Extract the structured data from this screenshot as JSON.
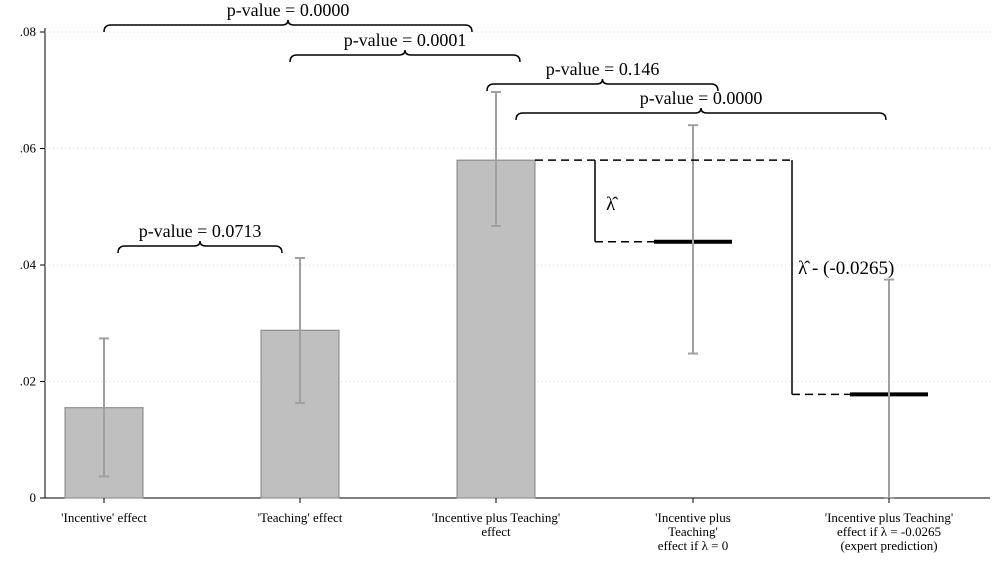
{
  "chart_data": {
    "type": "bar",
    "categories": [
      "'Incentive' effect",
      "'Teaching' effect",
      "'Incentive plus Teaching'\neffect",
      "'Incentive plus\nTeaching'\neffect if  λ = 0",
      "'Incentive plus Teaching'\neffect if  λ = -0.0265\n(expert prediction)"
    ],
    "values": [
      0.0155,
      0.0288,
      0.058,
      0.044,
      0.0178
    ],
    "ci_low": [
      0.0037,
      0.0163,
      0.0467,
      0.0248,
      0
    ],
    "ci_high": [
      0.0274,
      0.0412,
      0.0697,
      0.064,
      0.0375
    ],
    "color": "#bfbfbf",
    "ylim": [
      0,
      0.08
    ],
    "yticks": [
      0,
      {
        "value": 0.02,
        "label": ".02"
      },
      {
        "value": 0.04,
        "label": ".04"
      },
      {
        "value": 0.06,
        "label": ".06"
      },
      {
        "value": 0.08,
        "label": ".08"
      }
    ],
    "grid": true,
    "annotations": [
      "p-value = 0.0000",
      "p-value = 0.0001",
      "p-value = 0.146",
      "p-value = 0.0000",
      "p-value = 0.0713",
      "λ̂",
      "λ̂ - (-0.0265)"
    ]
  }
}
